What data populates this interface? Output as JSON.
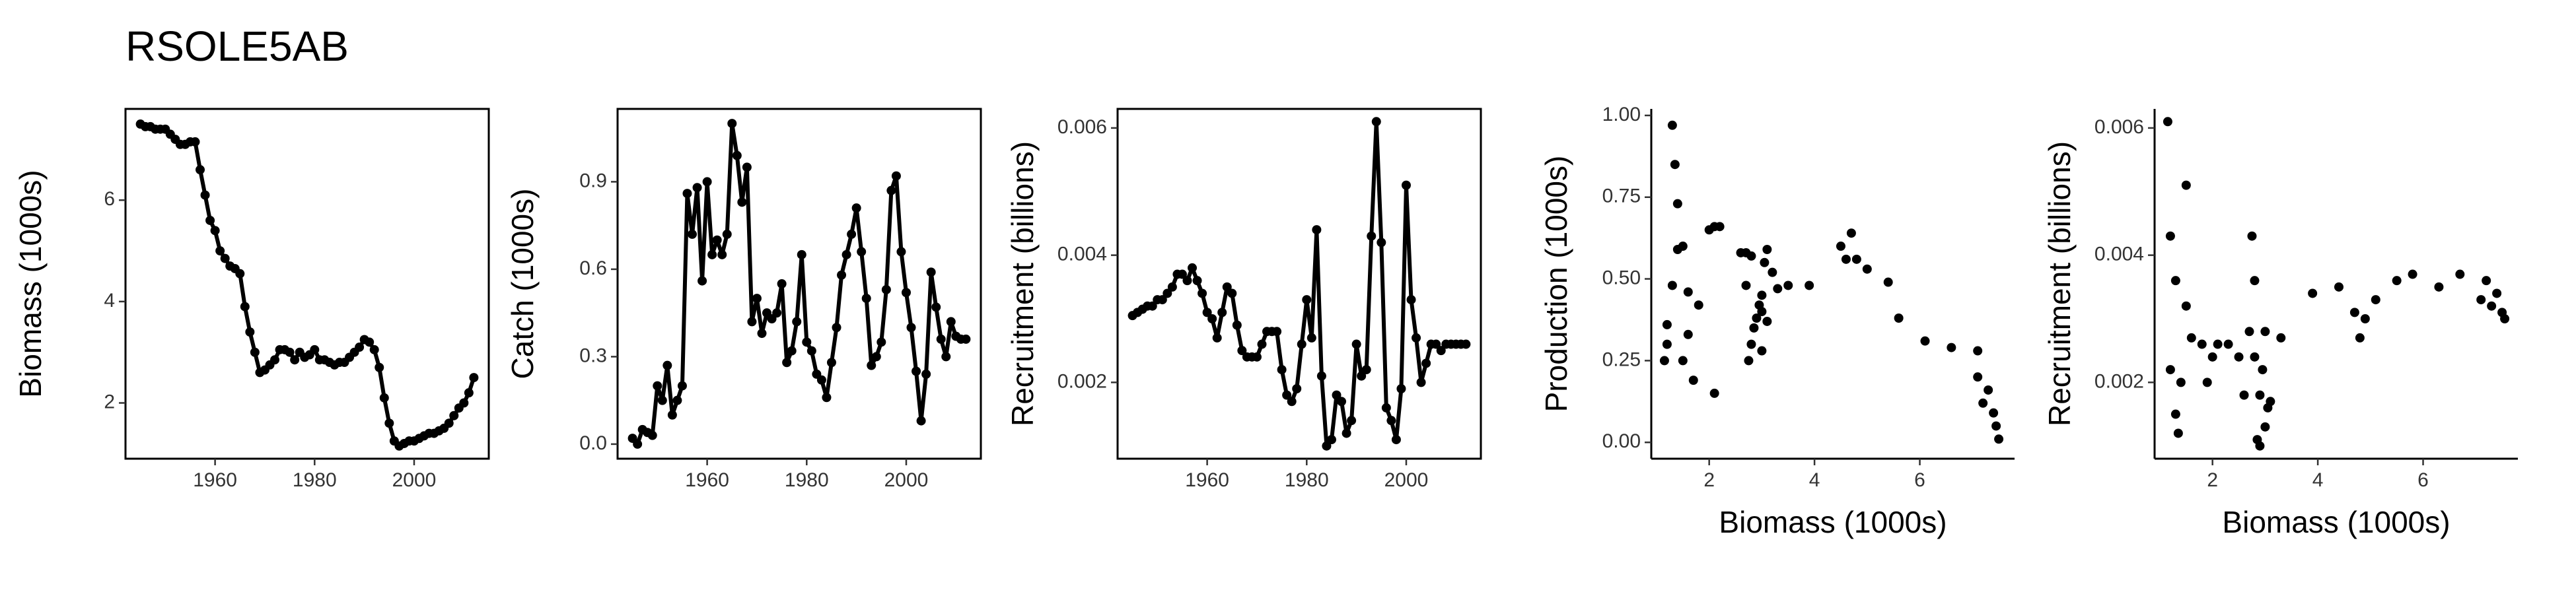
{
  "chart_data": [
    {
      "type": "line",
      "title": "RSOLE5AB",
      "ylabel": "Biomass (1000s)",
      "color": "#000000",
      "x": [
        1945,
        1946,
        1947,
        1948,
        1949,
        1950,
        1951,
        1952,
        1953,
        1954,
        1955,
        1956,
        1957,
        1958,
        1959,
        1960,
        1961,
        1962,
        1963,
        1964,
        1965,
        1966,
        1967,
        1968,
        1969,
        1970,
        1971,
        1972,
        1973,
        1974,
        1975,
        1976,
        1977,
        1978,
        1979,
        1980,
        1981,
        1982,
        1983,
        1984,
        1985,
        1986,
        1987,
        1988,
        1989,
        1990,
        1991,
        1992,
        1993,
        1994,
        1995,
        1996,
        1997,
        1998,
        1999,
        2000,
        2001,
        2002,
        2003,
        2004,
        2005,
        2006,
        2007,
        2008,
        2009,
        2010,
        2011,
        2012
      ],
      "values": [
        7.5,
        7.45,
        7.45,
        7.4,
        7.4,
        7.4,
        7.3,
        7.2,
        7.1,
        7.1,
        7.15,
        7.15,
        6.6,
        6.1,
        5.6,
        5.4,
        5.0,
        4.85,
        4.7,
        4.65,
        4.55,
        3.9,
        3.4,
        3.0,
        2.6,
        2.65,
        2.75,
        2.85,
        3.05,
        3.05,
        3.0,
        2.85,
        3.0,
        2.9,
        2.95,
        3.05,
        2.85,
        2.85,
        2.8,
        2.75,
        2.8,
        2.8,
        2.9,
        3.0,
        3.1,
        3.25,
        3.2,
        3.05,
        2.7,
        2.1,
        1.6,
        1.25,
        1.15,
        1.2,
        1.25,
        1.25,
        1.3,
        1.35,
        1.4,
        1.4,
        1.45,
        1.5,
        1.6,
        1.75,
        1.9,
        2.0,
        2.2,
        2.5
      ],
      "xlim": [
        1942,
        2015
      ],
      "xticks": [
        1960,
        1980,
        2000
      ],
      "ylim": [
        0.9,
        7.8
      ],
      "yticks": [
        2,
        4,
        6
      ]
    },
    {
      "type": "line",
      "ylabel": "Catch (1000s)",
      "color": "#000000",
      "x": [
        1945,
        1946,
        1947,
        1948,
        1949,
        1950,
        1951,
        1952,
        1953,
        1954,
        1955,
        1956,
        1957,
        1958,
        1959,
        1960,
        1961,
        1962,
        1963,
        1964,
        1965,
        1966,
        1967,
        1968,
        1969,
        1970,
        1971,
        1972,
        1973,
        1974,
        1975,
        1976,
        1977,
        1978,
        1979,
        1980,
        1981,
        1982,
        1983,
        1984,
        1985,
        1986,
        1987,
        1988,
        1989,
        1990,
        1991,
        1992,
        1993,
        1994,
        1995,
        1996,
        1997,
        1998,
        1999,
        2000,
        2001,
        2002,
        2003,
        2004,
        2005,
        2006,
        2007,
        2008,
        2009,
        2010,
        2011,
        2012
      ],
      "values": [
        0.02,
        0.0,
        0.05,
        0.04,
        0.03,
        0.2,
        0.15,
        0.27,
        0.1,
        0.15,
        0.2,
        0.86,
        0.72,
        0.88,
        0.56,
        0.9,
        0.65,
        0.7,
        0.65,
        0.72,
        1.1,
        0.99,
        0.83,
        0.95,
        0.42,
        0.5,
        0.38,
        0.45,
        0.43,
        0.45,
        0.55,
        0.28,
        0.32,
        0.42,
        0.65,
        0.35,
        0.32,
        0.24,
        0.22,
        0.16,
        0.28,
        0.4,
        0.58,
        0.65,
        0.72,
        0.81,
        0.66,
        0.5,
        0.27,
        0.3,
        0.35,
        0.53,
        0.87,
        0.92,
        0.66,
        0.52,
        0.4,
        0.25,
        0.08,
        0.24,
        0.59,
        0.47,
        0.36,
        0.3,
        0.42,
        0.37,
        0.36,
        0.36
      ],
      "xlim": [
        1942,
        2015
      ],
      "xticks": [
        1960,
        1980,
        2000
      ],
      "ylim": [
        -0.05,
        1.15
      ],
      "yticks": [
        {
          "value": 0,
          "label": "0.0"
        },
        0.3,
        0.6,
        0.9
      ]
    },
    {
      "type": "line",
      "ylabel": "Recruitment (billions)",
      "color": "#000000",
      "x": [
        1945,
        1946,
        1947,
        1948,
        1949,
        1950,
        1951,
        1952,
        1953,
        1954,
        1955,
        1956,
        1957,
        1958,
        1959,
        1960,
        1961,
        1962,
        1963,
        1964,
        1965,
        1966,
        1967,
        1968,
        1969,
        1970,
        1971,
        1972,
        1973,
        1974,
        1975,
        1976,
        1977,
        1978,
        1979,
        1980,
        1981,
        1982,
        1983,
        1984,
        1985,
        1986,
        1987,
        1988,
        1989,
        1990,
        1991,
        1992,
        1993,
        1994,
        1995,
        1996,
        1997,
        1998,
        1999,
        2000,
        2001,
        2002,
        2003,
        2004,
        2005,
        2006,
        2007,
        2008,
        2009,
        2010,
        2011,
        2012
      ],
      "values": [
        0.00305,
        0.0031,
        0.00315,
        0.0032,
        0.0032,
        0.0033,
        0.0033,
        0.0034,
        0.0035,
        0.0037,
        0.0037,
        0.0036,
        0.0038,
        0.0036,
        0.0034,
        0.0031,
        0.003,
        0.0027,
        0.0031,
        0.0035,
        0.0034,
        0.0029,
        0.0025,
        0.0024,
        0.0024,
        0.0024,
        0.0026,
        0.0028,
        0.0028,
        0.0028,
        0.0022,
        0.0018,
        0.0017,
        0.0019,
        0.0026,
        0.0033,
        0.0027,
        0.0044,
        0.0021,
        0.001,
        0.0011,
        0.0018,
        0.0017,
        0.0012,
        0.0014,
        0.0026,
        0.0021,
        0.0022,
        0.0043,
        0.0061,
        0.0042,
        0.0016,
        0.0014,
        0.0011,
        0.0019,
        0.0051,
        0.0033,
        0.0027,
        0.002,
        0.0023,
        0.0026,
        0.0026,
        0.0025,
        0.0026,
        0.0026,
        0.0026,
        0.0026,
        0.0026
      ],
      "xlim": [
        1942,
        2015
      ],
      "xticks": [
        1960,
        1980,
        2000
      ],
      "ylim": [
        0.0008,
        0.0063
      ],
      "yticks": [
        0.002,
        0.004,
        0.006
      ]
    },
    {
      "type": "scatter",
      "ylabel": "Production (1000s)",
      "xlabel": "Biomass (1000s)",
      "color": "#000000",
      "x": [
        1.15,
        1.2,
        1.2,
        1.3,
        1.3,
        1.35,
        1.4,
        1.4,
        1.5,
        1.5,
        1.6,
        1.7,
        1.6,
        1.8,
        2.0,
        2.1,
        2.2,
        2.1,
        2.6,
        2.7,
        2.8,
        2.7,
        2.75,
        2.8,
        2.85,
        2.9,
        2.95,
        3.0,
        3.05,
        3.1,
        3.0,
        3.1,
        3.2,
        3.0,
        3.3,
        3.5,
        3.9,
        4.5,
        4.6,
        4.7,
        4.8,
        5.0,
        5.4,
        5.6,
        6.1,
        6.6,
        7.1,
        7.1,
        7.2,
        7.3,
        7.4,
        7.45,
        7.5
      ],
      "values": [
        0.25,
        0.3,
        0.36,
        0.48,
        0.97,
        0.85,
        0.73,
        0.59,
        0.6,
        0.25,
        0.33,
        0.19,
        0.46,
        0.42,
        0.65,
        0.66,
        0.66,
        0.15,
        0.58,
        0.58,
        0.57,
        0.48,
        0.25,
        0.3,
        0.35,
        0.38,
        0.42,
        0.45,
        0.55,
        0.59,
        0.4,
        0.37,
        0.52,
        0.28,
        0.47,
        0.48,
        0.48,
        0.6,
        0.56,
        0.64,
        0.56,
        0.53,
        0.49,
        0.38,
        0.31,
        0.29,
        0.28,
        0.2,
        0.12,
        0.16,
        0.09,
        0.05,
        0.01
      ],
      "xlim": [
        0.9,
        7.8
      ],
      "xticks": [
        2,
        4,
        6
      ],
      "ylim": [
        -0.05,
        1.02
      ],
      "yticks": [
        {
          "value": 0,
          "label": "0.00"
        },
        0.25,
        {
          "value": 0.5,
          "label": "0.50"
        },
        0.75,
        {
          "value": 1,
          "label": "1.00"
        }
      ]
    },
    {
      "type": "scatter",
      "ylabel": "Recruitment (billions)",
      "xlabel": "Biomass (1000s)",
      "color": "#000000",
      "x": [
        1.15,
        1.2,
        1.2,
        1.3,
        1.3,
        1.35,
        1.4,
        1.5,
        1.5,
        1.6,
        1.8,
        1.9,
        2.0,
        2.1,
        2.3,
        2.5,
        2.6,
        2.7,
        2.75,
        2.8,
        2.8,
        2.85,
        2.9,
        2.9,
        2.95,
        3.0,
        3.0,
        3.05,
        3.1,
        3.3,
        3.9,
        4.4,
        4.7,
        4.8,
        4.9,
        5.1,
        5.5,
        5.8,
        6.3,
        6.7,
        7.1,
        7.2,
        7.3,
        7.4,
        7.5,
        7.55
      ],
      "values": [
        0.0061,
        0.0043,
        0.0022,
        0.0036,
        0.0015,
        0.0012,
        0.002,
        0.0032,
        0.0051,
        0.0027,
        0.0026,
        0.002,
        0.0024,
        0.0026,
        0.0026,
        0.0024,
        0.0018,
        0.0028,
        0.0043,
        0.0036,
        0.0024,
        0.0011,
        0.001,
        0.0018,
        0.0022,
        0.0028,
        0.0013,
        0.0016,
        0.0017,
        0.0027,
        0.0034,
        0.0035,
        0.0031,
        0.0027,
        0.003,
        0.0033,
        0.0036,
        0.0037,
        0.0035,
        0.0037,
        0.0033,
        0.0036,
        0.0032,
        0.0034,
        0.0031,
        0.003
      ],
      "xlim": [
        0.9,
        7.8
      ],
      "xticks": [
        2,
        4,
        6
      ],
      "ylim": [
        0.0008,
        0.0063
      ],
      "yticks": [
        0.002,
        0.004,
        0.006
      ]
    }
  ]
}
